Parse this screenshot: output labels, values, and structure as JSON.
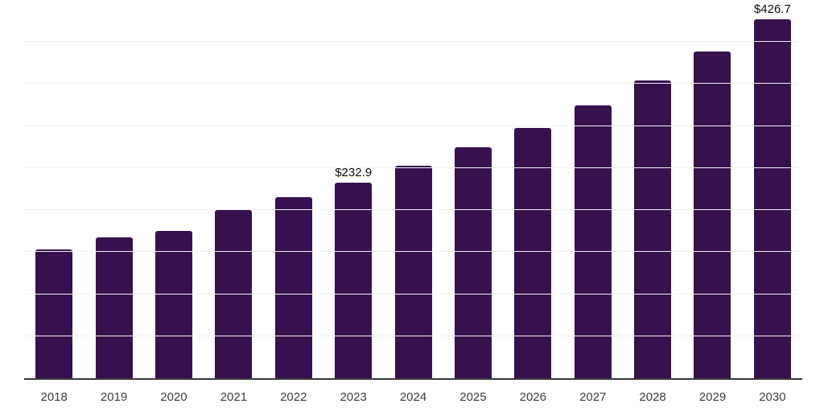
{
  "chart_data": {
    "type": "bar",
    "title": "",
    "xlabel": "",
    "ylabel": "",
    "categories": [
      "2018",
      "2019",
      "2020",
      "2021",
      "2022",
      "2023",
      "2024",
      "2025",
      "2026",
      "2027",
      "2028",
      "2029",
      "2030"
    ],
    "values": [
      153.2,
      168.0,
      175.5,
      200.6,
      215.4,
      232.9,
      253.2,
      274.4,
      298.2,
      324.6,
      354.2,
      388.7,
      426.7
    ],
    "data_labels": {
      "2023": "$232.9",
      "2030": "$426.7"
    },
    "ylim": [
      0,
      450
    ],
    "gridline_step": 50,
    "grid": true,
    "legend": false,
    "colors": {
      "bar": "#36114e",
      "gridline": "#f2f2f2",
      "axis_line": "#3a3a3a",
      "tick_label": "#3d3d3d",
      "data_label": "#0d0d0d"
    }
  }
}
